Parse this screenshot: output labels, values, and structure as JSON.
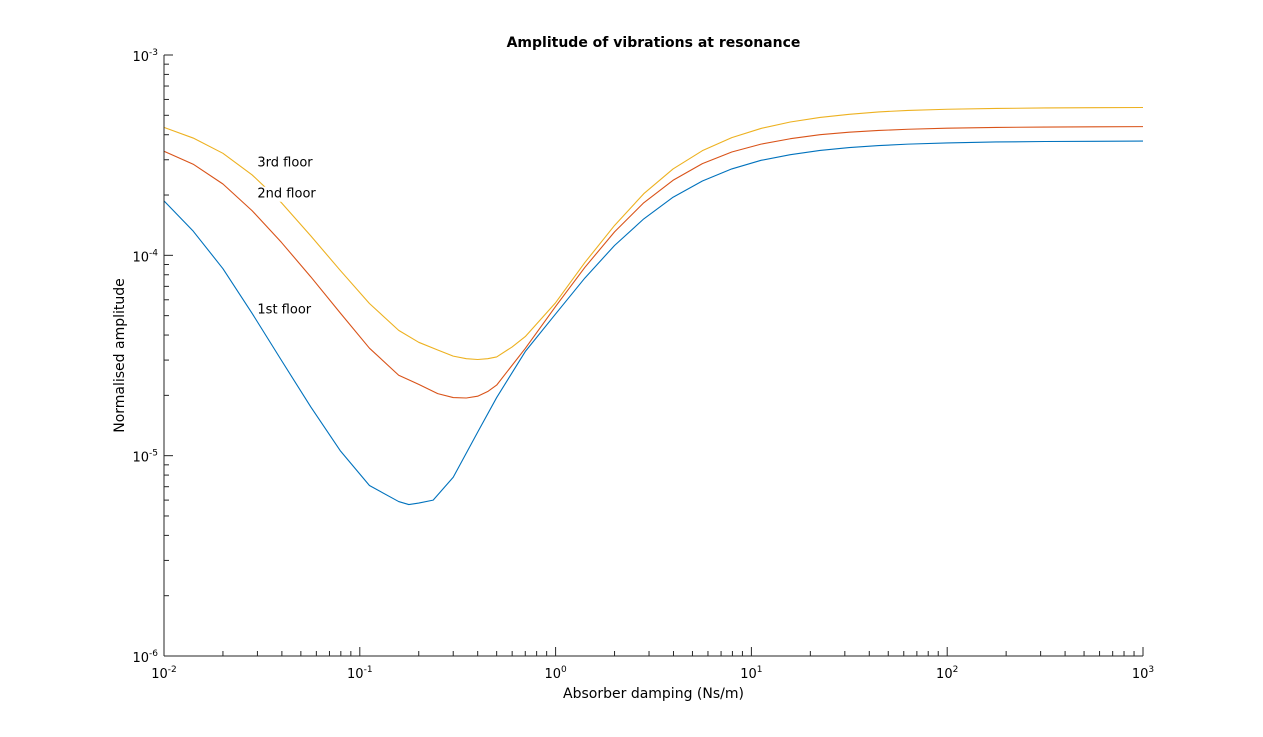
{
  "chart_data": {
    "type": "line",
    "title": "Amplitude of vibrations at resonance",
    "xlabel": "Absorber damping (Ns/m)",
    "ylabel": "Normalised amplitude",
    "xscale": "log",
    "yscale": "log",
    "xlim": [
      0.01,
      1000
    ],
    "ylim": [
      1e-06,
      0.001
    ],
    "grid": false,
    "legend": "none",
    "x_ticks": [
      {
        "value": 0.01,
        "base": "10",
        "exp": "-2"
      },
      {
        "value": 0.1,
        "base": "10",
        "exp": "-1"
      },
      {
        "value": 1,
        "base": "10",
        "exp": "0"
      },
      {
        "value": 10,
        "base": "10",
        "exp": "1"
      },
      {
        "value": 100,
        "base": "10",
        "exp": "2"
      },
      {
        "value": 1000,
        "base": "10",
        "exp": "3"
      }
    ],
    "y_ticks": [
      {
        "value": 1e-06,
        "base": "10",
        "exp": "-6"
      },
      {
        "value": 1e-05,
        "base": "10",
        "exp": "-5"
      },
      {
        "value": 0.0001,
        "base": "10",
        "exp": "-4"
      },
      {
        "value": 0.001,
        "base": "10",
        "exp": "-3"
      }
    ],
    "series": [
      {
        "name": "1st floor",
        "color": "#0072bd",
        "x": [
          0.01,
          0.0141,
          0.02,
          0.0282,
          0.0398,
          0.0562,
          0.0794,
          0.112,
          0.158,
          0.178,
          0.2,
          0.237,
          0.3,
          0.4,
          0.5,
          0.7,
          1,
          1.41,
          2,
          2.82,
          3.98,
          5.62,
          7.94,
          11.2,
          15.8,
          22.4,
          31.6,
          44.7,
          63.1,
          100,
          177.8,
          316,
          562,
          1000
        ],
        "y": [
          0.000187,
          0.000132,
          8.58e-05,
          5.13e-05,
          2.99e-05,
          1.75e-05,
          1.06e-05,
          7.1e-06,
          5.9e-06,
          5.7e-06,
          5.8e-06,
          6e-06,
          7.8e-06,
          1.31e-05,
          1.95e-05,
          3.31e-05,
          5.1e-05,
          7.7e-05,
          0.000112,
          0.000152,
          0.000195,
          0.000235,
          0.00027,
          0.000298,
          0.000318,
          0.000334,
          0.000345,
          0.000353,
          0.000359,
          0.000364,
          0.000368,
          0.00037,
          0.000371,
          0.000372
        ]
      },
      {
        "name": "2nd floor",
        "color": "#d95319",
        "x": [
          0.01,
          0.0141,
          0.02,
          0.0282,
          0.0398,
          0.0562,
          0.0794,
          0.112,
          0.158,
          0.2,
          0.25,
          0.3,
          0.35,
          0.4,
          0.45,
          0.5,
          0.7,
          1,
          1.41,
          2,
          2.82,
          3.98,
          5.62,
          7.94,
          11.2,
          15.8,
          22.4,
          31.6,
          44.7,
          63.1,
          100,
          177.8,
          316,
          562,
          1000
        ],
        "y": [
          0.000331,
          0.000285,
          0.000227,
          0.000167,
          0.000116,
          7.81e-05,
          5.16e-05,
          3.44e-05,
          2.52e-05,
          2.27e-05,
          2.04e-05,
          1.95e-05,
          1.94e-05,
          1.98e-05,
          2.09e-05,
          2.25e-05,
          3.43e-05,
          5.56e-05,
          8.7e-05,
          0.000131,
          0.000183,
          0.000237,
          0.000287,
          0.000328,
          0.000359,
          0.000382,
          0.0004,
          0.000412,
          0.00042,
          0.000426,
          0.000431,
          0.000435,
          0.000437,
          0.000438,
          0.000439
        ]
      },
      {
        "name": "3rd floor",
        "color": "#edb120",
        "x": [
          0.01,
          0.0141,
          0.02,
          0.0282,
          0.0398,
          0.0562,
          0.0794,
          0.112,
          0.158,
          0.2,
          0.25,
          0.3,
          0.35,
          0.4,
          0.45,
          0.5,
          0.6,
          0.7,
          1,
          1.41,
          2,
          2.82,
          3.98,
          5.62,
          7.94,
          11.2,
          15.8,
          22.4,
          31.6,
          44.7,
          63.1,
          100,
          177.8,
          316,
          562,
          1000
        ],
        "y": [
          0.000435,
          0.000385,
          0.000323,
          0.000252,
          0.000183,
          0.000125,
          8.42e-05,
          5.75e-05,
          4.22e-05,
          3.68e-05,
          3.37e-05,
          3.14e-05,
          3.05e-05,
          3.02e-05,
          3.05e-05,
          3.11e-05,
          3.49e-05,
          3.93e-05,
          5.8e-05,
          9.2e-05,
          0.000141,
          0.000203,
          0.00027,
          0.000333,
          0.000387,
          0.00043,
          0.000463,
          0.000488,
          0.000506,
          0.00052,
          0.000529,
          0.000536,
          0.000541,
          0.000544,
          0.000546,
          0.000547
        ]
      }
    ],
    "annotations": [
      {
        "text": "3rd floor",
        "x": 0.03,
        "y": 0.000291
      },
      {
        "text": "2nd floor",
        "x": 0.03,
        "y": 0.000203
      },
      {
        "text": "1st floor",
        "x": 0.03,
        "y": 5.38e-05
      }
    ]
  }
}
